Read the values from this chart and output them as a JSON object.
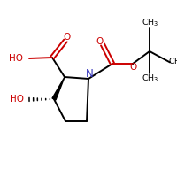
{
  "bg_color": "#ffffff",
  "bond_color": "#000000",
  "bond_width": 1.4,
  "N_color": "#3333bb",
  "O_color": "#cc0000",
  "figsize": [
    2.0,
    2.0
  ],
  "dpi": 100,
  "xlim": [
    0,
    1
  ],
  "ylim": [
    0,
    1
  ],
  "font_size": 7.5,
  "font_size_ch3": 6.8
}
